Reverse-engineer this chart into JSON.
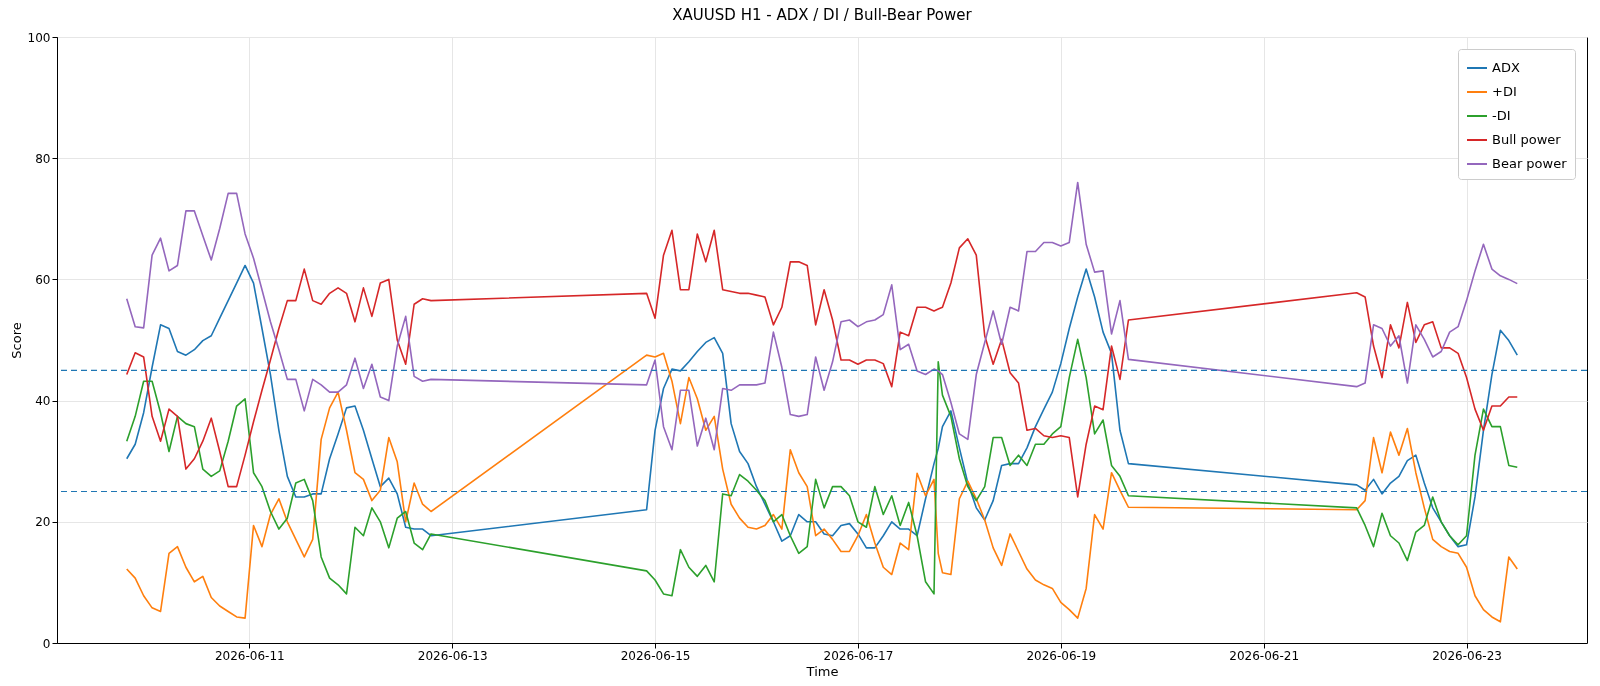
{
  "chart_data": {
    "type": "line",
    "title": "XAUUSD H1 - ADX / DI / Bull-Bear Power",
    "xlabel": "Time",
    "ylabel": "Score",
    "x": [
      "2026-06-09T19:00",
      "2026-06-09T21:00",
      "2026-06-09T23:00",
      "2026-06-10T01:00",
      "2026-06-10T03:00",
      "2026-06-10T05:00",
      "2026-06-10T07:00",
      "2026-06-10T09:00",
      "2026-06-10T11:00",
      "2026-06-10T13:00",
      "2026-06-10T15:00",
      "2026-06-10T17:00",
      "2026-06-10T19:00",
      "2026-06-10T21:00",
      "2026-06-10T23:00",
      "2026-06-11T01:00",
      "2026-06-11T03:00",
      "2026-06-11T05:00",
      "2026-06-11T07:00",
      "2026-06-11T09:00",
      "2026-06-11T11:00",
      "2026-06-11T13:00",
      "2026-06-11T15:00",
      "2026-06-11T17:00",
      "2026-06-11T19:00",
      "2026-06-11T21:00",
      "2026-06-11T23:00",
      "2026-06-12T01:00",
      "2026-06-12T03:00",
      "2026-06-12T05:00",
      "2026-06-12T07:00",
      "2026-06-12T09:00",
      "2026-06-12T11:00",
      "2026-06-12T13:00",
      "2026-06-12T15:00",
      "2026-06-12T17:00",
      "2026-06-12T19:00",
      "2026-06-14T22:00",
      "2026-06-15T00:00",
      "2026-06-15T02:00",
      "2026-06-15T04:00",
      "2026-06-15T06:00",
      "2026-06-15T08:00",
      "2026-06-15T10:00",
      "2026-06-15T12:00",
      "2026-06-15T14:00",
      "2026-06-15T16:00",
      "2026-06-15T18:00",
      "2026-06-15T20:00",
      "2026-06-15T22:00",
      "2026-06-16T00:00",
      "2026-06-16T02:00",
      "2026-06-16T04:00",
      "2026-06-16T06:00",
      "2026-06-16T08:00",
      "2026-06-16T10:00",
      "2026-06-16T12:00",
      "2026-06-16T14:00",
      "2026-06-16T16:00",
      "2026-06-16T18:00",
      "2026-06-16T20:00",
      "2026-06-16T22:00",
      "2026-06-17T00:00",
      "2026-06-17T02:00",
      "2026-06-17T04:00",
      "2026-06-17T06:00",
      "2026-06-17T08:00",
      "2026-06-17T10:00",
      "2026-06-17T12:00",
      "2026-06-17T14:00",
      "2026-06-17T16:00",
      "2026-06-17T18:00",
      "2026-06-17T19:00",
      "2026-06-17T20:00",
      "2026-06-17T22:00",
      "2026-06-18T00:00",
      "2026-06-18T02:00",
      "2026-06-18T04:00",
      "2026-06-18T06:00",
      "2026-06-18T08:00",
      "2026-06-18T10:00",
      "2026-06-18T12:00",
      "2026-06-18T14:00",
      "2026-06-18T16:00",
      "2026-06-18T18:00",
      "2026-06-18T20:00",
      "2026-06-18T22:00",
      "2026-06-19T00:00",
      "2026-06-19T02:00",
      "2026-06-19T04:00",
      "2026-06-19T06:00",
      "2026-06-19T08:00",
      "2026-06-19T10:00",
      "2026-06-19T12:00",
      "2026-06-19T14:00",
      "2026-06-19T16:00",
      "2026-06-21T22:00",
      "2026-06-22T00:00",
      "2026-06-22T02:00",
      "2026-06-22T04:00",
      "2026-06-22T06:00",
      "2026-06-22T08:00",
      "2026-06-22T10:00",
      "2026-06-22T12:00",
      "2026-06-22T14:00",
      "2026-06-22T16:00",
      "2026-06-22T18:00",
      "2026-06-22T20:00",
      "2026-06-22T22:00",
      "2026-06-23T00:00",
      "2026-06-23T02:00",
      "2026-06-23T04:00",
      "2026-06-23T06:00",
      "2026-06-23T08:00",
      "2026-06-23T10:00",
      "2026-06-23T12:00"
    ],
    "series": [
      {
        "name": "ADX",
        "color": "#1f77b4",
        "values": [
          30.4,
          32.8,
          38,
          45.5,
          52.5,
          51.9,
          48.1,
          47.5,
          48.4,
          49.9,
          50.7,
          53.6,
          56.5,
          59.4,
          62.3,
          59.4,
          51.9,
          44.3,
          35.1,
          27.5,
          24.1,
          24.1,
          24.6,
          24.6,
          30.4,
          34.5,
          38.8,
          39.1,
          35.1,
          30.4,
          25.8,
          27.2,
          24.6,
          19.1,
          18.8,
          18.8,
          17.7,
          22,
          35.1,
          42,
          45.2,
          44.9,
          46.4,
          48.1,
          49.6,
          50.4,
          47.8,
          36.2,
          31.6,
          29.6,
          25.8,
          22.9,
          20,
          16.8,
          17.7,
          21.2,
          20,
          20,
          18,
          17.7,
          19.4,
          19.7,
          18,
          15.7,
          15.7,
          17.7,
          20,
          18.8,
          18.8,
          17.7,
          23.8,
          29.6,
          32.1,
          35.7,
          38.3,
          32.2,
          26.4,
          22.3,
          20.3,
          23.5,
          29.3,
          29.6,
          29.6,
          32.2,
          35.7,
          38.6,
          41.4,
          46.1,
          51.9,
          57.1,
          61.7,
          57.1,
          51.3,
          47.8,
          35.1,
          29.6,
          26.1,
          25.2,
          27,
          24.6,
          26.4,
          27.5,
          30.1,
          31,
          26.4,
          22.3,
          20,
          17.7,
          15.9,
          16.2,
          24.1,
          35.1,
          44.3,
          51.6,
          49.9,
          47.5
        ]
      },
      {
        "name": "+DI",
        "color": "#ff7f0e",
        "values": [
          12.2,
          10.7,
          7.8,
          5.8,
          5.2,
          14.8,
          15.9,
          12.5,
          10.1,
          11,
          7.5,
          6.1,
          5.2,
          4.3,
          4.1,
          19.4,
          15.9,
          21.2,
          23.8,
          20,
          17.1,
          14.2,
          17.1,
          33.6,
          38.8,
          41.4,
          35.1,
          28.1,
          27,
          23.5,
          25.2,
          33.9,
          29.9,
          20,
          26.4,
          22.9,
          21.7,
          47.5,
          47.2,
          47.8,
          43.2,
          36.2,
          43.8,
          40.3,
          35.1,
          37.4,
          28.7,
          22.9,
          20.6,
          19.1,
          18.8,
          19.4,
          21.2,
          18.8,
          31.9,
          28.1,
          25.8,
          17.7,
          18.8,
          17.1,
          15.1,
          15.1,
          17.7,
          21.2,
          16.5,
          12.5,
          11.3,
          16.5,
          15.4,
          28,
          24.3,
          27,
          14.8,
          11.6,
          11.3,
          23.8,
          26.7,
          23.8,
          20.3,
          15.7,
          12.8,
          18,
          15.1,
          12.2,
          10.4,
          9.6,
          9,
          6.7,
          5.5,
          4.1,
          9,
          21.2,
          18.8,
          28.1,
          25.2,
          22.4,
          22,
          23.5,
          33.9,
          28.1,
          34.8,
          31,
          35.4,
          28.1,
          22.3,
          17.1,
          15.9,
          15.1,
          14.8,
          12.5,
          7.8,
          5.5,
          4.3,
          3.5,
          14.2,
          12.2
        ]
      },
      {
        "name": "-DI",
        "color": "#2ca02c",
        "values": [
          33.3,
          37.4,
          43.2,
          43.2,
          38,
          31.6,
          37.4,
          36.2,
          35.7,
          28.7,
          27.5,
          28.4,
          33.3,
          39.1,
          40.3,
          28.1,
          25.8,
          21.7,
          18.8,
          20.6,
          26.4,
          27,
          23.5,
          14.2,
          10.7,
          9.6,
          8.1,
          19.1,
          17.7,
          22.3,
          20,
          15.7,
          20.6,
          21.7,
          16.5,
          15.4,
          18,
          11.9,
          10.4,
          8.1,
          7.8,
          15.4,
          12.5,
          11,
          12.8,
          10.1,
          24.6,
          24.3,
          27.8,
          26.7,
          25.2,
          23.5,
          20,
          21.2,
          17.7,
          14.8,
          15.9,
          27,
          22.3,
          25.8,
          25.8,
          24.3,
          20,
          19.1,
          25.8,
          21.2,
          24.3,
          19.4,
          23.2,
          17.7,
          10.1,
          8.1,
          46.4,
          40.9,
          37.4,
          30.4,
          25.8,
          23.5,
          25.8,
          33.9,
          33.9,
          29.3,
          31,
          29.3,
          32.8,
          32.8,
          34.5,
          35.7,
          43.8,
          50.1,
          43.8,
          34.5,
          36.8,
          29.3,
          27.5,
          24.3,
          22.3,
          19.4,
          15.9,
          21.4,
          17.7,
          16.5,
          13.6,
          18.3,
          19.4,
          24.1,
          20,
          17.7,
          16.2,
          17.7,
          31,
          38.6,
          35.7,
          35.7,
          29.3,
          29
        ]
      },
      {
        "name": "Bull power",
        "color": "#d62728",
        "values": [
          44.3,
          47.9,
          47.2,
          37.4,
          33.3,
          38.6,
          37.4,
          28.7,
          30.4,
          33.3,
          37.1,
          31.6,
          25.8,
          25.8,
          31,
          36.5,
          41.7,
          46.7,
          51.9,
          56.5,
          56.5,
          61.7,
          56.5,
          55.9,
          57.7,
          58.6,
          57.7,
          53,
          58.6,
          53.9,
          59.4,
          60,
          50,
          46,
          55.9,
          56.8,
          56.5,
          57.7,
          53.6,
          64,
          68.1,
          58.3,
          58.3,
          67.5,
          62.9,
          68.1,
          58.3,
          58,
          57.7,
          57.7,
          57.4,
          57.1,
          52.5,
          55.4,
          62.9,
          62.9,
          62.3,
          52.5,
          58.3,
          53.3,
          46.7,
          46.7,
          46,
          46.7,
          46.7,
          46.1,
          42.3,
          51.3,
          50.7,
          55.4,
          55.4,
          54.8,
          55.1,
          55.4,
          59.4,
          65.2,
          66.7,
          64,
          50.7,
          46,
          50.1,
          44.6,
          42.9,
          35.1,
          35.4,
          34.2,
          33.9,
          34.2,
          33.9,
          24.1,
          32.8,
          39.1,
          38.5,
          49,
          43.5,
          53.3,
          57.8,
          57.1,
          49,
          43.8,
          52.5,
          48.7,
          56.2,
          49.6,
          52.5,
          53,
          48.7,
          48.7,
          47.8,
          43.8,
          38.6,
          35.1,
          39.1,
          39.1,
          40.6,
          40.6
        ]
      },
      {
        "name": "Bear power",
        "color": "#9467bd",
        "values": [
          56.8,
          52.2,
          52,
          64,
          66.8,
          61.4,
          62.3,
          71.3,
          71.3,
          67.2,
          63.2,
          68.4,
          74.2,
          74.2,
          67.5,
          63.5,
          58.3,
          53,
          48.4,
          43.5,
          43.5,
          38.3,
          43.5,
          42.6,
          41.4,
          41.4,
          42.6,
          47,
          42,
          46,
          40.6,
          40,
          49,
          53.9,
          44,
          43.2,
          43.5,
          42.6,
          46.7,
          35.7,
          31.9,
          41.7,
          41.7,
          32.5,
          37.1,
          31.9,
          42,
          41.7,
          42.6,
          42.6,
          42.6,
          42.9,
          51.3,
          45.5,
          37.7,
          37.4,
          37.7,
          47.2,
          41.7,
          46.4,
          53,
          53.3,
          52.2,
          53,
          53.3,
          54.2,
          59.1,
          48.4,
          49.3,
          44.9,
          44.3,
          45.2,
          44.9,
          44.3,
          39.7,
          34.5,
          33.6,
          44.3,
          49.6,
          54.8,
          49.3,
          55.4,
          54.8,
          64.6,
          64.6,
          66.1,
          66.1,
          65.5,
          66.1,
          76,
          65.8,
          61.2,
          61.4,
          51,
          56.5,
          46.8,
          42.3,
          42.9,
          52.5,
          51.9,
          49,
          50.7,
          42.9,
          52.5,
          50.1,
          47.2,
          48.1,
          51.3,
          52.2,
          56.5,
          61.4,
          65.8,
          61.7,
          60.6,
          60,
          59.3
        ]
      }
    ],
    "xlim": [
      "2026-06-09T02:30",
      "2026-06-24T04:30"
    ],
    "xticks": [
      "2026-06-11",
      "2026-06-13",
      "2026-06-15",
      "2026-06-17",
      "2026-06-19",
      "2026-06-21",
      "2026-06-23"
    ],
    "ylim": [
      0,
      100
    ],
    "yticks": [
      0,
      20,
      40,
      60,
      80,
      100
    ],
    "ref_lines": [
      {
        "axis": "y",
        "value": 45,
        "color": "#1f77b4",
        "line_style": "dashed"
      },
      {
        "axis": "y",
        "value": 25,
        "color": "#1f77b4",
        "line_style": "dashed"
      }
    ],
    "grid": true,
    "legend": "top right",
    "line_style": "solid"
  }
}
